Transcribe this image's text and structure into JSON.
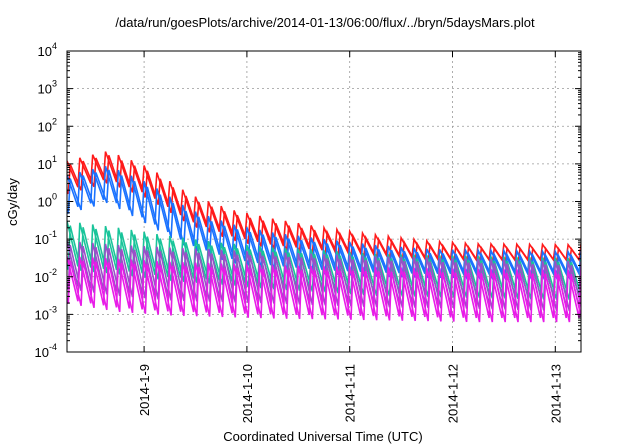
{
  "chart_data": {
    "type": "line",
    "title": "/data/run/goesPlots/archive/2014-01-13/06:00/flux/../bryn/5daysMars.plot",
    "xlabel": "Coordinated Universal Time (UTC)",
    "ylabel": "cGy/day",
    "y_scale": "log",
    "ylim": [
      0.0001,
      10000
    ],
    "x_range_days": [
      "2014-01-08 06:00",
      "2014-01-13 06:00"
    ],
    "grid": true,
    "legend": "none",
    "x_ticks": [
      {
        "label": "2014-1-9",
        "day": 1.0
      },
      {
        "label": "2014-1-10",
        "day": 2.0
      },
      {
        "label": "2014-1-11",
        "day": 3.0
      },
      {
        "label": "2014-1-12",
        "day": 4.0
      },
      {
        "label": "2014-1-13",
        "day": 5.0
      }
    ],
    "y_ticks": [
      {
        "base": "10",
        "exp": "-4",
        "value": 0.0001
      },
      {
        "base": "10",
        "exp": "-3",
        "value": 0.001
      },
      {
        "base": "10",
        "exp": "-2",
        "value": 0.01
      },
      {
        "base": "10",
        "exp": "-1",
        "value": 0.1
      },
      {
        "base": "10",
        "exp": "0",
        "value": 1
      },
      {
        "base": "10",
        "exp": "1",
        "value": 10
      },
      {
        "base": "10",
        "exp": "2",
        "value": 100
      },
      {
        "base": "10",
        "exp": "3",
        "value": 1000
      },
      {
        "base": "10",
        "exp": "4",
        "value": 10000
      }
    ],
    "sawtooth_period_hours": 3,
    "series": [
      {
        "color": "#ff1a1a",
        "peaks": [
          [
            0,
            12
          ],
          [
            0.4,
            22
          ],
          [
            0.8,
            8
          ],
          [
            1.2,
            1.5
          ],
          [
            1.6,
            0.6
          ],
          [
            2.0,
            0.35
          ],
          [
            2.5,
            0.2
          ],
          [
            3.0,
            0.13
          ],
          [
            3.5,
            0.09
          ],
          [
            4.0,
            0.075
          ],
          [
            5.15,
            0.07
          ]
        ],
        "troughs": [
          [
            0,
            2
          ],
          [
            0.4,
            4
          ],
          [
            0.8,
            1.5
          ],
          [
            1.2,
            0.3
          ],
          [
            1.6,
            0.12
          ],
          [
            2.0,
            0.07
          ],
          [
            2.5,
            0.05
          ],
          [
            3.0,
            0.04
          ],
          [
            3.5,
            0.03
          ],
          [
            4.0,
            0.028
          ],
          [
            5.15,
            0.028
          ]
        ]
      },
      {
        "color": "#1a72ff",
        "peaks": [
          [
            0,
            5
          ],
          [
            0.4,
            9
          ],
          [
            0.8,
            3
          ],
          [
            1.2,
            0.6
          ],
          [
            1.6,
            0.25
          ],
          [
            2.0,
            0.15
          ],
          [
            2.5,
            0.1
          ],
          [
            3.0,
            0.07
          ],
          [
            3.5,
            0.055
          ],
          [
            4.0,
            0.05
          ],
          [
            5.15,
            0.045
          ]
        ],
        "troughs": [
          [
            0,
            0.6
          ],
          [
            0.4,
            1.2
          ],
          [
            0.8,
            0.3
          ],
          [
            1.2,
            0.07
          ],
          [
            1.6,
            0.03
          ],
          [
            2.0,
            0.02
          ],
          [
            2.5,
            0.015
          ],
          [
            3.0,
            0.013
          ],
          [
            3.5,
            0.012
          ],
          [
            4.0,
            0.012
          ],
          [
            5.15,
            0.012
          ]
        ]
      },
      {
        "color": "#19c49a",
        "peaks": [
          [
            0,
            0.3
          ],
          [
            0.5,
            0.2
          ],
          [
            1.0,
            0.12
          ],
          [
            1.5,
            0.08
          ],
          [
            2.0,
            0.06
          ],
          [
            2.5,
            0.05
          ],
          [
            3.0,
            0.04
          ],
          [
            4.0,
            0.035
          ],
          [
            5.15,
            0.03
          ]
        ],
        "troughs": [
          [
            0,
            0.02
          ],
          [
            0.5,
            0.015
          ],
          [
            1.0,
            0.01
          ],
          [
            1.5,
            0.008
          ],
          [
            2.0,
            0.006
          ],
          [
            2.5,
            0.005
          ],
          [
            3.0,
            0.004
          ],
          [
            4.0,
            0.0035
          ],
          [
            5.15,
            0.003
          ]
        ]
      },
      {
        "color": "#9b4fc8",
        "peaks": [
          [
            0,
            0.09
          ],
          [
            0.5,
            0.07
          ],
          [
            1.0,
            0.06
          ],
          [
            2.0,
            0.045
          ],
          [
            3.0,
            0.035
          ],
          [
            4.0,
            0.03
          ],
          [
            5.15,
            0.025
          ]
        ],
        "troughs": [
          [
            0,
            0.006
          ],
          [
            0.5,
            0.004
          ],
          [
            1.0,
            0.003
          ],
          [
            2.0,
            0.0025
          ],
          [
            3.0,
            0.002
          ],
          [
            4.0,
            0.0018
          ],
          [
            5.15,
            0.0015
          ]
        ]
      },
      {
        "color": "#e81ce8",
        "peaks": [
          [
            0,
            0.035
          ],
          [
            0.5,
            0.03
          ],
          [
            1.0,
            0.025
          ],
          [
            2.0,
            0.02
          ],
          [
            3.0,
            0.018
          ],
          [
            4.0,
            0.016
          ],
          [
            5.15,
            0.015
          ]
        ],
        "troughs": [
          [
            0,
            0.0025
          ],
          [
            0.5,
            0.0015
          ],
          [
            1.0,
            0.0012
          ],
          [
            2.0,
            0.001
          ],
          [
            3.0,
            0.0009
          ],
          [
            4.0,
            0.0008
          ],
          [
            5.15,
            0.0008
          ]
        ]
      }
    ]
  }
}
